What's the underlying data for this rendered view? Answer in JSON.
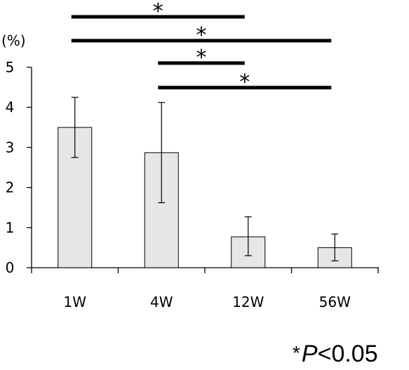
{
  "chart_data": {
    "type": "bar",
    "y_unit_label": "(%)",
    "categories": [
      "1W",
      "4W",
      "12W",
      "56W"
    ],
    "values": [
      3.5,
      2.87,
      0.77,
      0.5
    ],
    "error_bars": {
      "upper": [
        4.25,
        4.12,
        1.27,
        0.84
      ],
      "lower": [
        2.75,
        1.62,
        0.3,
        0.17
      ]
    },
    "ylim": [
      0,
      5
    ],
    "yticks": [
      "0",
      "1",
      "2",
      "3",
      "4",
      "5"
    ],
    "bar_color": "#e6e6e6",
    "bar_edge_color": "#000000",
    "significance": [
      {
        "from": "1W",
        "to": "12W",
        "label": "*"
      },
      {
        "from": "1W",
        "to": "56W",
        "label": "*"
      },
      {
        "from": "4W",
        "to": "12W",
        "label": "*"
      },
      {
        "from": "4W",
        "to": "56W",
        "label": "*"
      }
    ],
    "footnote": {
      "marker": "*",
      "p_symbol": "P",
      "threshold": "<0.05"
    }
  }
}
